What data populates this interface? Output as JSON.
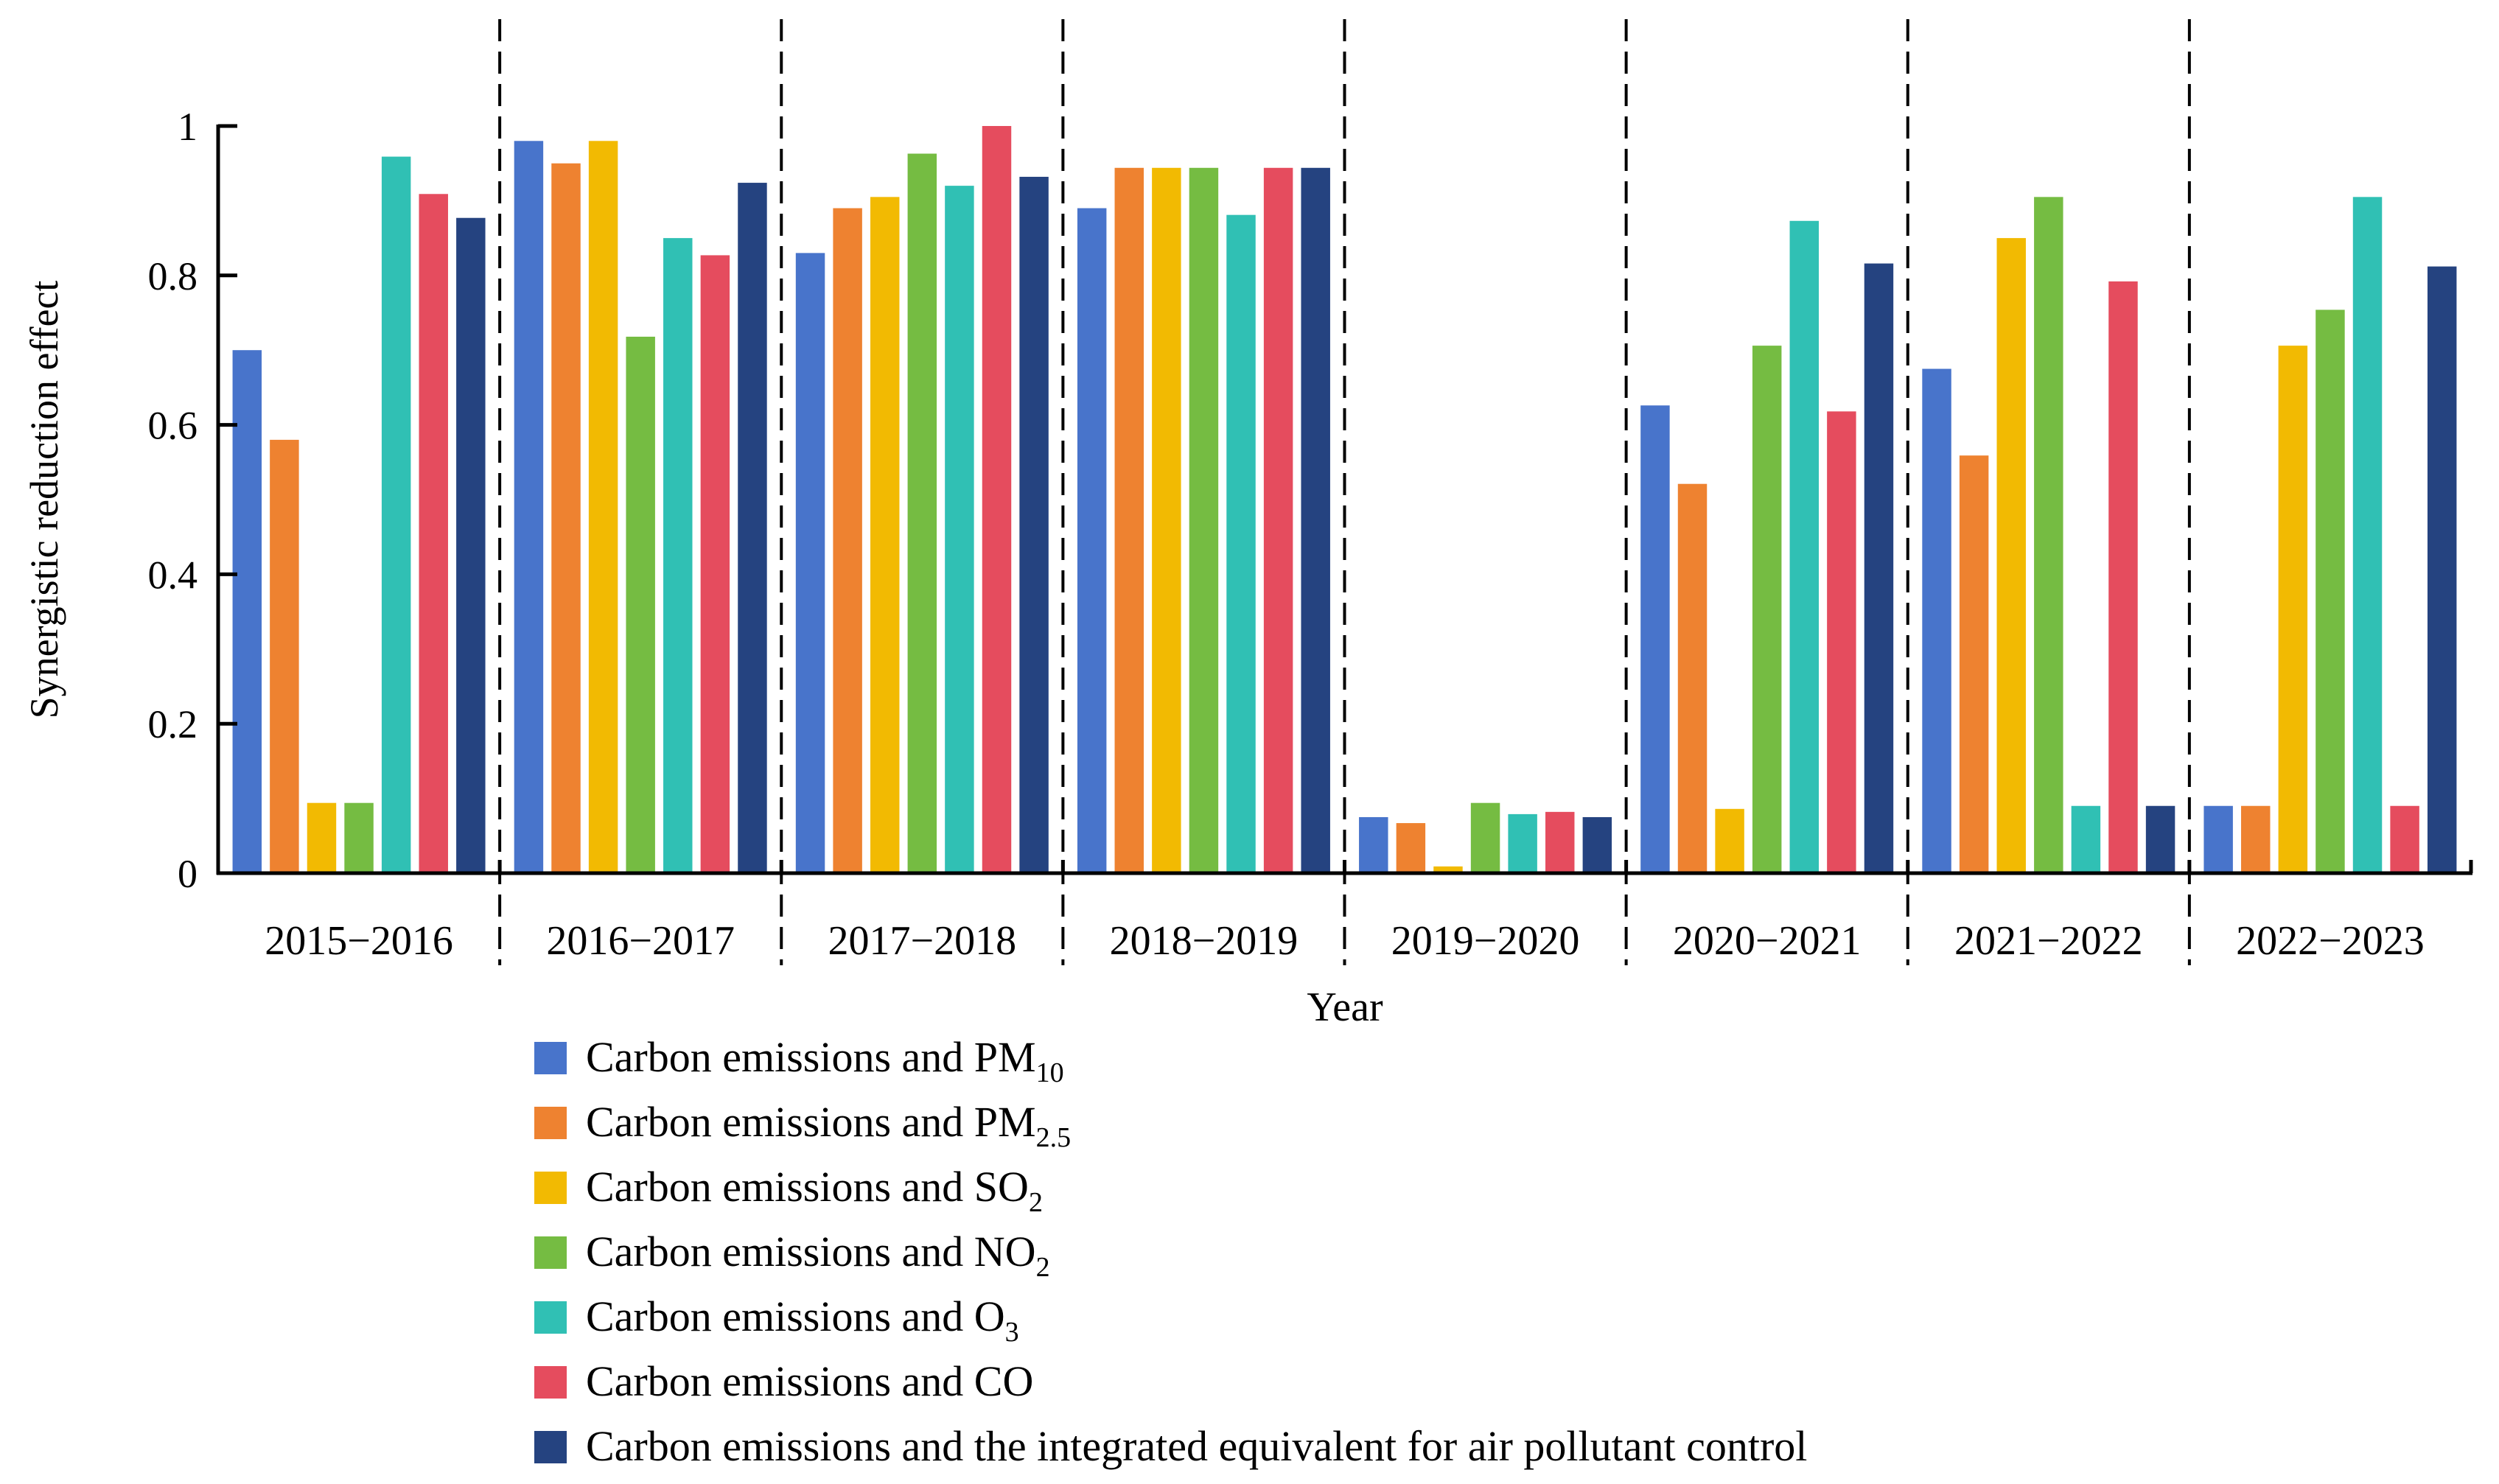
{
  "chart_data": {
    "type": "bar",
    "xlabel": "Year",
    "ylabel": "Synergistic reduction effect",
    "ylim": [
      0,
      1
    ],
    "yticks": [
      {
        "value": 0,
        "label": "0"
      },
      {
        "value": 0.2,
        "label": "0.2"
      },
      {
        "value": 0.4,
        "label": "0.4"
      },
      {
        "value": 0.6,
        "label": "0.6"
      },
      {
        "value": 0.8,
        "label": "0.8"
      },
      {
        "value": 1,
        "label": "1"
      }
    ],
    "grid": false,
    "legend_placement": "bottom",
    "categories": [
      "2015−2016",
      "2016−2017",
      "2017−2018",
      "2018−2019",
      "2019−2020",
      "2020−2021",
      "2021−2022",
      "2022−2023"
    ],
    "series": [
      {
        "name": "Carbon emissions and PM",
        "sub": "10",
        "color": "#4874CB",
        "values": [
          0.7,
          0.98,
          0.83,
          0.89,
          0.075,
          0.626,
          0.675,
          0.09
        ]
      },
      {
        "name": "Carbon emissions and PM",
        "sub": "2.5",
        "color": "#EE8230",
        "values": [
          0.58,
          0.95,
          0.89,
          0.944,
          0.067,
          0.521,
          0.559,
          0.09
        ]
      },
      {
        "name": "Carbon emissions and SO",
        "sub": "2",
        "color": "#F2BA02",
        "values": [
          0.094,
          0.98,
          0.905,
          0.944,
          0.009,
          0.086,
          0.85,
          0.706
        ]
      },
      {
        "name": "Carbon emissions and NO",
        "sub": "2",
        "color": "#75BC42",
        "values": [
          0.094,
          0.718,
          0.963,
          0.944,
          0.094,
          0.706,
          0.905,
          0.754
        ]
      },
      {
        "name": "Carbon emissions and O",
        "sub": "3",
        "color": "#30C0B4",
        "values": [
          0.959,
          0.85,
          0.92,
          0.881,
          0.079,
          0.873,
          0.09,
          0.905
        ]
      },
      {
        "name": "Carbon emissions and CO",
        "sub": "",
        "color": "#E54C5E",
        "values": [
          0.909,
          0.827,
          1.0,
          0.944,
          0.082,
          0.618,
          0.792,
          0.09
        ]
      },
      {
        "name": "Carbon emissions and the integrated equivalent for air pollutant control",
        "sub": "",
        "color": "#254380",
        "values": [
          0.877,
          0.924,
          0.932,
          0.944,
          0.075,
          0.816,
          0.09,
          0.812
        ]
      }
    ]
  }
}
